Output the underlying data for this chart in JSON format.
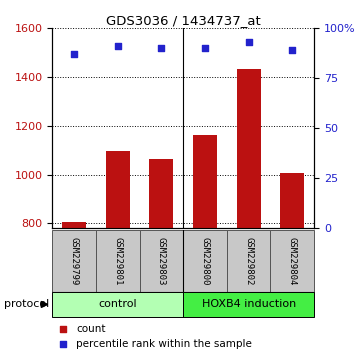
{
  "title": "GDS3036 / 1434737_at",
  "samples": [
    "GSM229799",
    "GSM229801",
    "GSM229803",
    "GSM229800",
    "GSM229802",
    "GSM229804"
  ],
  "counts": [
    805,
    1095,
    1063,
    1163,
    1435,
    1008
  ],
  "percentile_ranks": [
    87,
    91,
    90,
    90,
    93,
    89
  ],
  "groups": [
    {
      "label": "control",
      "color": "#b3ffb3"
    },
    {
      "label": "HOXB4 induction",
      "color": "#44ee44"
    }
  ],
  "ylim_left": [
    780,
    1600
  ],
  "ylim_right": [
    0,
    100
  ],
  "yticks_left": [
    800,
    1000,
    1200,
    1400,
    1600
  ],
  "yticks_right": [
    0,
    25,
    50,
    75,
    100
  ],
  "bar_color": "#bb1111",
  "scatter_color": "#2222cc",
  "sample_box_color": "#c8c8c8",
  "sample_box_edge": "#555555",
  "protocol_label": "protocol",
  "legend_items": [
    {
      "color": "#bb1111",
      "label": "count"
    },
    {
      "color": "#2222cc",
      "label": "percentile rank within the sample"
    }
  ],
  "n_control": 3,
  "n_hoxb4": 3
}
